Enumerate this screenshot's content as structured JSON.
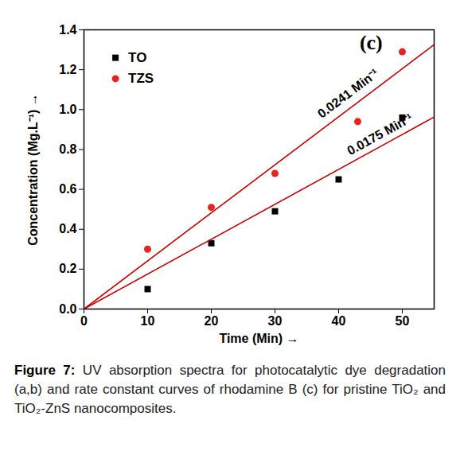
{
  "chart_data": {
    "type": "scatter",
    "panel_label": "(c)",
    "x_label": "Time (Min)",
    "y_label": "Concentration (Mg.L⁻¹)",
    "caption": "Figure 7: UV absorption spectra for photocatalytic dye degradation (a,b) and rate constant curves of rhodamine B (c) for pristine TiO₂ and TiO₂-ZnS nanocomposites.",
    "xlim": [
      0,
      55
    ],
    "xticks": [
      0,
      10,
      20,
      30,
      40,
      50
    ],
    "ylim": [
      0,
      1.4
    ],
    "yticks": [
      {
        "value": 0,
        "label": "0.0"
      },
      0.2,
      0.4,
      0.6,
      0.8,
      {
        "value": 1,
        "label": "1.0"
      },
      1.2,
      1.4
    ],
    "grid": false,
    "legend": "upper left",
    "series": [
      {
        "name": "TO",
        "color": "#000000",
        "marker": "square",
        "x": [
          10,
          20,
          30,
          40,
          50
        ],
        "values": [
          0.1,
          0.33,
          0.49,
          0.65,
          0.96
        ]
      },
      {
        "name": "TZS",
        "color": "#e8231f",
        "marker": "circle",
        "x": [
          10,
          20,
          30,
          43,
          50
        ],
        "values": [
          0.3,
          0.51,
          0.68,
          0.94,
          1.29
        ]
      },
      {
        "type": "line",
        "color": "#cc0000",
        "x": [
          0,
          55
        ],
        "values": [
          0,
          1.3255
        ]
      },
      {
        "type": "line",
        "color": "#cc0000",
        "x": [
          0,
          55
        ],
        "values": [
          0,
          0.9625
        ]
      }
    ],
    "annotations": [
      {
        "text": "0.0241 Min⁻¹",
        "x": 41.5,
        "y": 1.08
      },
      {
        "text": "0.0175 Min⁻¹",
        "x": 46.5,
        "y": 0.875
      }
    ]
  }
}
